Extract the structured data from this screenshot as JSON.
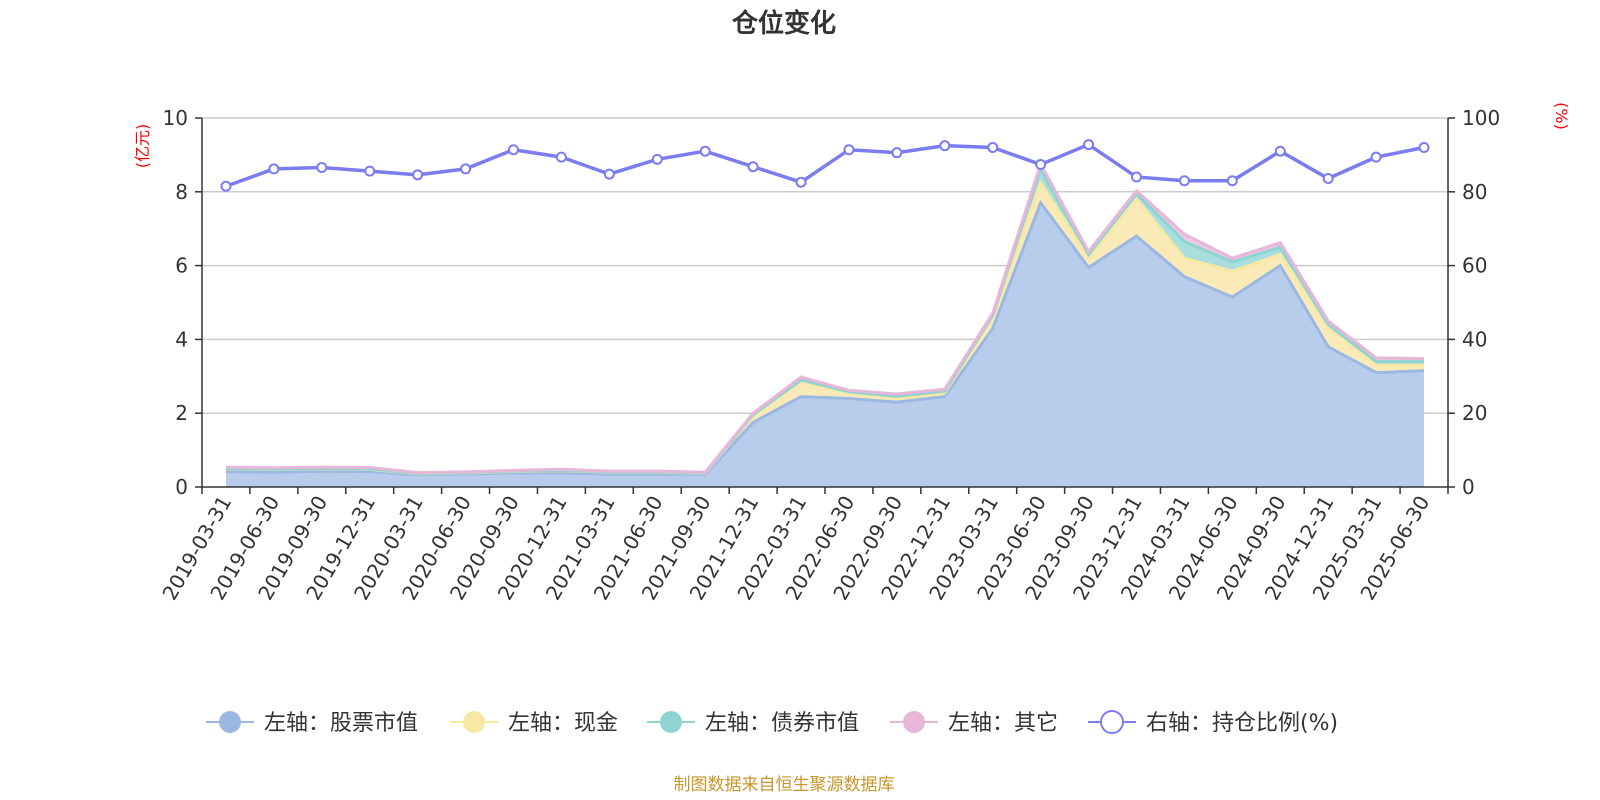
{
  "chart_data": {
    "type": "area",
    "title": "仓位变化",
    "y_left_unit": "(亿元)",
    "y_right_unit": "(%)",
    "y_left_range": [
      0,
      10
    ],
    "y_right_range": [
      0,
      100
    ],
    "y_left_ticks": [
      "0",
      "2",
      "4",
      "6",
      "8",
      "10"
    ],
    "y_right_ticks": [
      "0",
      "20",
      "40",
      "60",
      "80",
      "100"
    ],
    "grid": true,
    "legend_position": "bottom",
    "categories": [
      "2019-03-31",
      "2019-06-30",
      "2019-09-30",
      "2019-12-31",
      "2020-03-31",
      "2020-06-30",
      "2020-09-30",
      "2020-12-31",
      "2021-03-31",
      "2021-06-30",
      "2021-09-30",
      "2021-12-31",
      "2022-03-31",
      "2022-06-30",
      "2022-09-30",
      "2022-12-31",
      "2023-03-31",
      "2023-06-30",
      "2023-09-30",
      "2023-12-31",
      "2024-03-31",
      "2024-06-30",
      "2024-09-30",
      "2024-12-31",
      "2025-03-31",
      "2025-06-30"
    ],
    "series": [
      {
        "name": "左轴：股票市值",
        "axis": "left",
        "color": "#9bb8e3",
        "fill": "#b8cdeb",
        "values": [
          0.42,
          0.4,
          0.43,
          0.42,
          0.33,
          0.35,
          0.38,
          0.38,
          0.35,
          0.35,
          0.34,
          1.75,
          2.45,
          2.4,
          2.3,
          2.45,
          4.3,
          7.7,
          5.95,
          6.8,
          5.7,
          5.15,
          6.0,
          3.8,
          3.1,
          3.15
        ]
      },
      {
        "name": "左轴：现金",
        "axis": "left",
        "color": "#f7e8a3",
        "fill": "#f9eab8",
        "values": [
          0.07,
          0.07,
          0.06,
          0.06,
          0.03,
          0.03,
          0.04,
          0.06,
          0.05,
          0.05,
          0.03,
          0.18,
          0.4,
          0.15,
          0.1,
          0.1,
          0.3,
          0.55,
          0.25,
          1.0,
          0.5,
          0.7,
          0.3,
          0.55,
          0.2,
          0.15
        ]
      },
      {
        "name": "左轴：债券市值",
        "axis": "left",
        "color": "#8fd3d3",
        "fill": "#a8dede",
        "values": [
          0.01,
          0.01,
          0.01,
          0.01,
          0.01,
          0.01,
          0.01,
          0.01,
          0.01,
          0.01,
          0.01,
          0.03,
          0.05,
          0.03,
          0.06,
          0.05,
          0.05,
          0.35,
          0.1,
          0.15,
          0.45,
          0.25,
          0.2,
          0.05,
          0.1,
          0.1
        ]
      },
      {
        "name": "左轴：其它",
        "axis": "left",
        "color": "#e8b6d8",
        "fill": "#f0c8e0",
        "values": [
          0.04,
          0.04,
          0.04,
          0.04,
          0.02,
          0.02,
          0.02,
          0.03,
          0.02,
          0.02,
          0.02,
          0.04,
          0.08,
          0.04,
          0.06,
          0.05,
          0.06,
          0.15,
          0.08,
          0.08,
          0.2,
          0.1,
          0.12,
          0.1,
          0.1,
          0.08
        ]
      },
      {
        "name": "右轴：持仓比例(%)",
        "axis": "right",
        "color": "#7a7cf0",
        "values": [
          81.5,
          86.2,
          86.6,
          85.6,
          84.6,
          86.2,
          91.4,
          89.4,
          84.8,
          88.8,
          91.0,
          86.8,
          82.6,
          91.4,
          90.6,
          92.5,
          92.0,
          87.4,
          92.8,
          84.0,
          83.0,
          83.0,
          91.0,
          83.6,
          89.4,
          92.0
        ]
      }
    ]
  },
  "source_note": "制图数据来自恒生聚源数据库"
}
